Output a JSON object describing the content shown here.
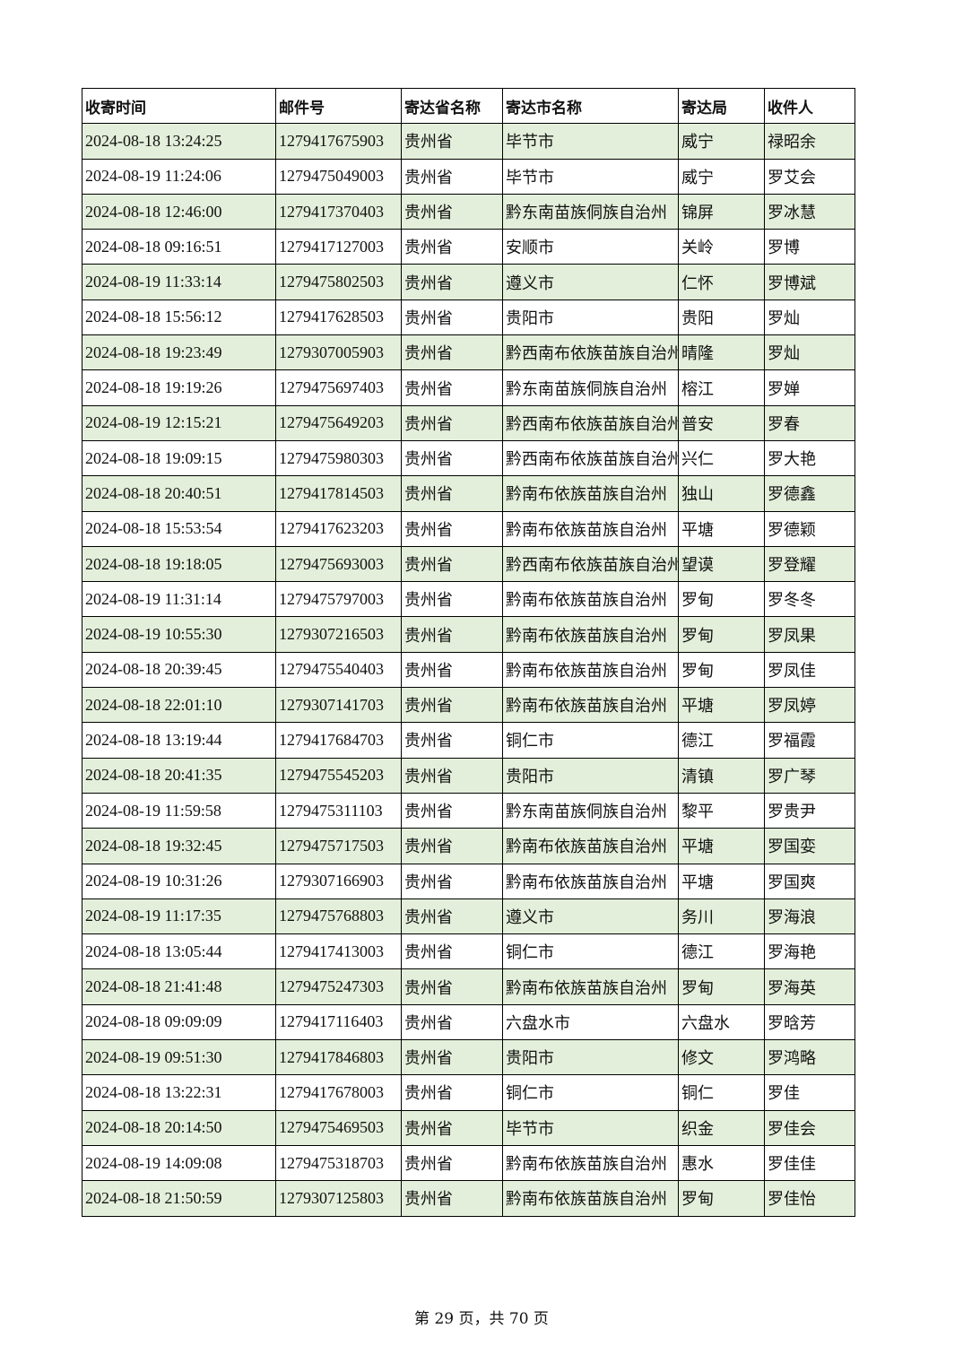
{
  "table": {
    "header": [
      "收寄时间",
      "邮件号",
      "寄达省名称",
      "寄达市名称",
      "寄达局",
      "收件人"
    ],
    "rows": [
      [
        "2024-08-18 13:24:25",
        "1279417675903",
        "贵州省",
        "毕节市",
        "威宁",
        "禄昭余"
      ],
      [
        "2024-08-19 11:24:06",
        "1279475049003",
        "贵州省",
        "毕节市",
        "威宁",
        "罗艾会"
      ],
      [
        "2024-08-18 12:46:00",
        "1279417370403",
        "贵州省",
        "黔东南苗族侗族自治州",
        "锦屏",
        "罗冰慧"
      ],
      [
        "2024-08-18 09:16:51",
        "1279417127003",
        "贵州省",
        "安顺市",
        "关岭",
        "罗博"
      ],
      [
        "2024-08-19 11:33:14",
        "1279475802503",
        "贵州省",
        "遵义市",
        "仁怀",
        "罗博斌"
      ],
      [
        "2024-08-18 15:56:12",
        "1279417628503",
        "贵州省",
        "贵阳市",
        "贵阳",
        "罗灿"
      ],
      [
        "2024-08-18 19:23:49",
        "1279307005903",
        "贵州省",
        "黔西南布依族苗族自治州",
        "晴隆",
        "罗灿"
      ],
      [
        "2024-08-18 19:19:26",
        "1279475697403",
        "贵州省",
        "黔东南苗族侗族自治州",
        "榕江",
        "罗婵"
      ],
      [
        "2024-08-19 12:15:21",
        "1279475649203",
        "贵州省",
        "黔西南布依族苗族自治州",
        "普安",
        "罗春"
      ],
      [
        "2024-08-18 19:09:15",
        "1279475980303",
        "贵州省",
        "黔西南布依族苗族自治州",
        "兴仁",
        "罗大艳"
      ],
      [
        "2024-08-18 20:40:51",
        "1279417814503",
        "贵州省",
        "黔南布依族苗族自治州",
        "独山",
        "罗德鑫"
      ],
      [
        "2024-08-18 15:53:54",
        "1279417623203",
        "贵州省",
        "黔南布依族苗族自治州",
        "平塘",
        "罗德颖"
      ],
      [
        "2024-08-18 19:18:05",
        "1279475693003",
        "贵州省",
        "黔西南布依族苗族自治州",
        "望谟",
        "罗登耀"
      ],
      [
        "2024-08-19 11:31:14",
        "1279475797003",
        "贵州省",
        "黔南布依族苗族自治州",
        "罗甸",
        "罗冬冬"
      ],
      [
        "2024-08-19 10:55:30",
        "1279307216503",
        "贵州省",
        "黔南布依族苗族自治州",
        "罗甸",
        "罗凤果"
      ],
      [
        "2024-08-18 20:39:45",
        "1279475540403",
        "贵州省",
        "黔南布依族苗族自治州",
        "罗甸",
        "罗凤佳"
      ],
      [
        "2024-08-18 22:01:10",
        "1279307141703",
        "贵州省",
        "黔南布依族苗族自治州",
        "平塘",
        "罗凤婷"
      ],
      [
        "2024-08-18 13:19:44",
        "1279417684703",
        "贵州省",
        "铜仁市",
        "德江",
        "罗福霞"
      ],
      [
        "2024-08-18 20:41:35",
        "1279475545203",
        "贵州省",
        "贵阳市",
        "清镇",
        "罗广琴"
      ],
      [
        "2024-08-19 11:59:58",
        "1279475311103",
        "贵州省",
        "黔东南苗族侗族自治州",
        "黎平",
        "罗贵尹"
      ],
      [
        "2024-08-18 19:32:45",
        "1279475717503",
        "贵州省",
        "黔南布依族苗族自治州",
        "平塘",
        "罗国娈"
      ],
      [
        "2024-08-19 10:31:26",
        "1279307166903",
        "贵州省",
        "黔南布依族苗族自治州",
        "平塘",
        "罗国爽"
      ],
      [
        "2024-08-19 11:17:35",
        "1279475768803",
        "贵州省",
        "遵义市",
        "务川",
        "罗海浪"
      ],
      [
        "2024-08-18 13:05:44",
        "1279417413003",
        "贵州省",
        "铜仁市",
        "德江",
        "罗海艳"
      ],
      [
        "2024-08-18 21:41:48",
        "1279475247303",
        "贵州省",
        "黔南布依族苗族自治州",
        "罗甸",
        "罗海英"
      ],
      [
        "2024-08-18 09:09:09",
        "1279417116403",
        "贵州省",
        "六盘水市",
        "六盘水",
        "罗晗芳"
      ],
      [
        "2024-08-19 09:51:30",
        "1279417846803",
        "贵州省",
        "贵阳市",
        "修文",
        "罗鸿略"
      ],
      [
        "2024-08-18 13:22:31",
        "1279417678003",
        "贵州省",
        "铜仁市",
        "铜仁",
        "罗佳"
      ],
      [
        "2024-08-18 20:14:50",
        "1279475469503",
        "贵州省",
        "毕节市",
        "织金",
        "罗佳会"
      ],
      [
        "2024-08-19 14:09:08",
        "1279475318703",
        "贵州省",
        "黔南布依族苗族自治州",
        "惠水",
        "罗佳佳"
      ],
      [
        "2024-08-18 21:50:59",
        "1279307125803",
        "贵州省",
        "黔南布依族苗族自治州",
        "罗甸",
        "罗佳怡"
      ]
    ]
  },
  "footer": {
    "page": "第 29 页，共 70 页"
  }
}
